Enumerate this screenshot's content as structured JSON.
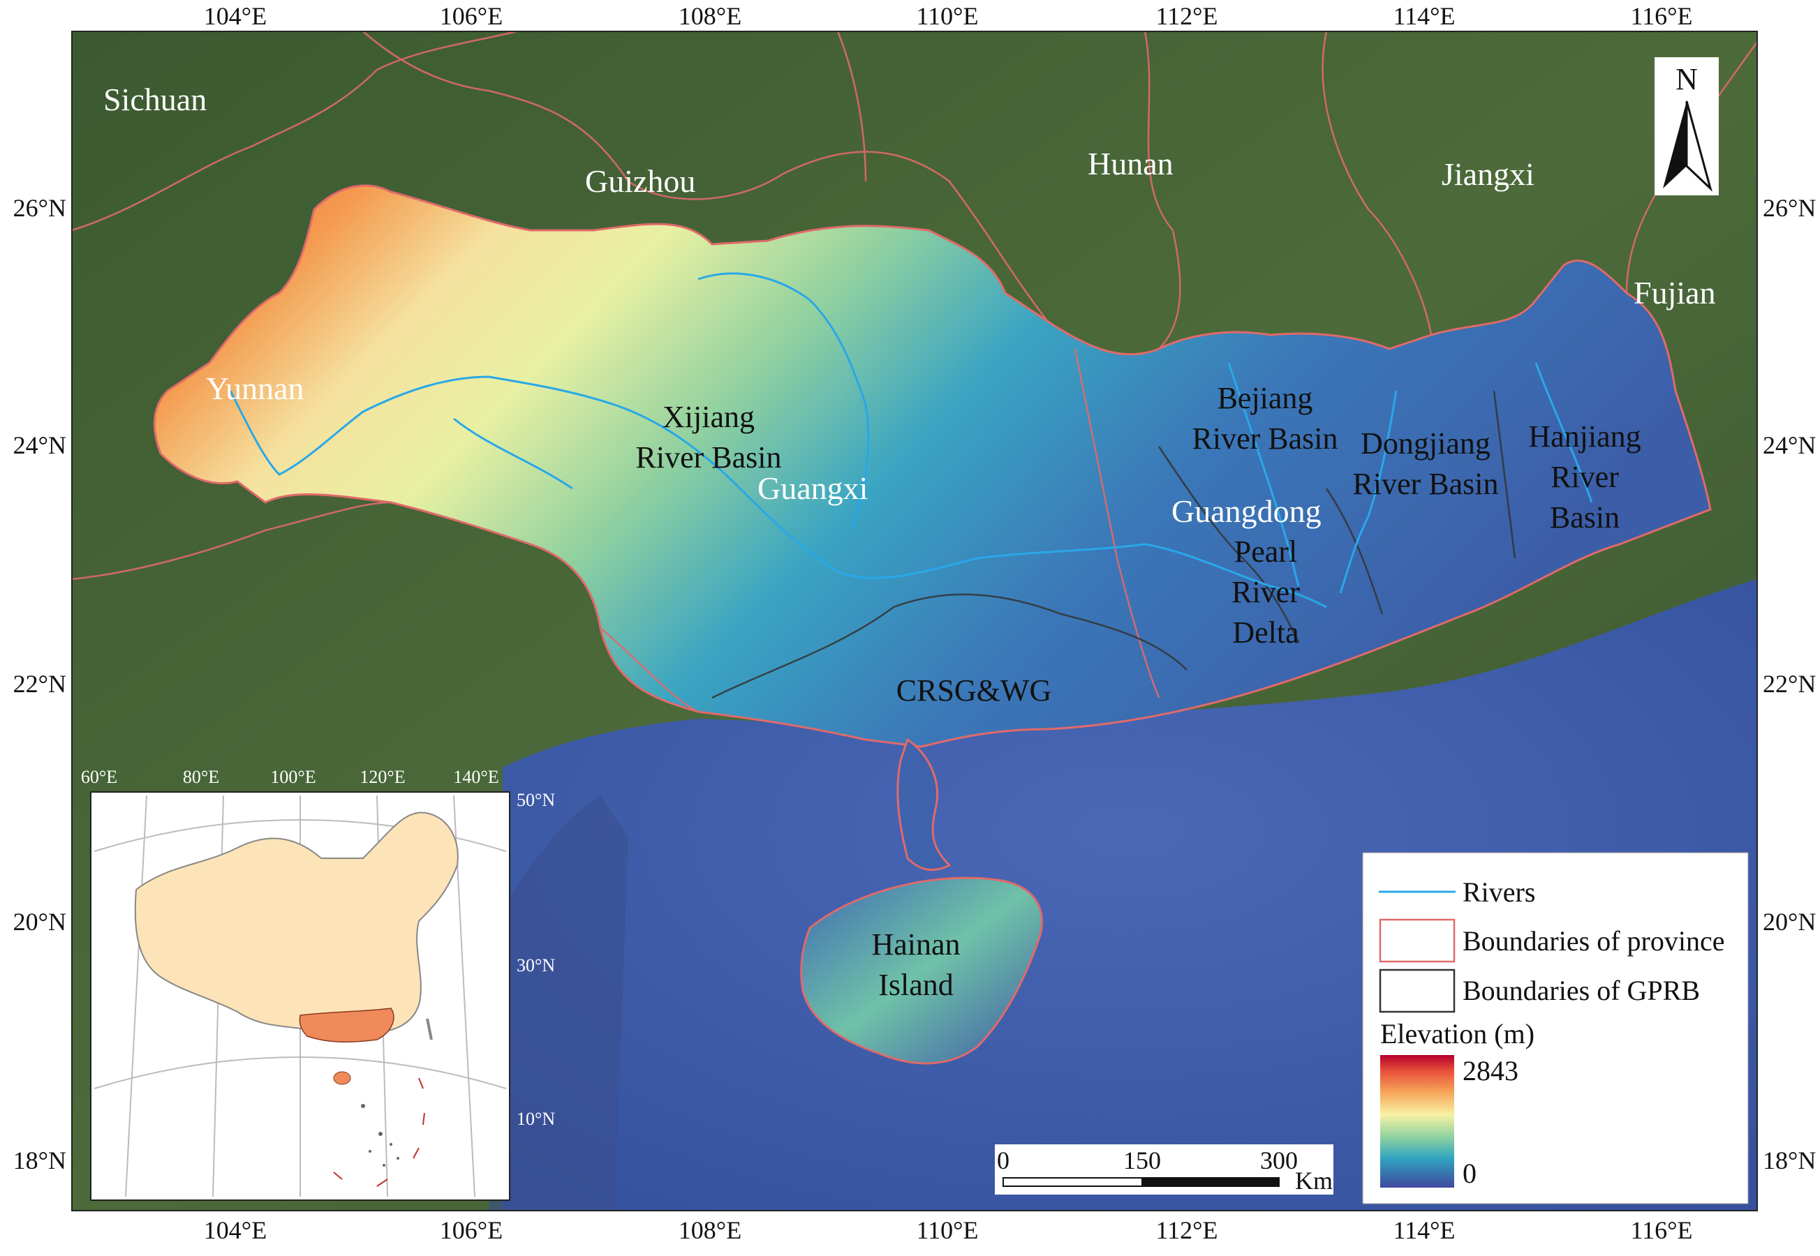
{
  "map": {
    "lon_ticks": [
      "104°E",
      "106°E",
      "108°E",
      "110°E",
      "112°E",
      "114°E",
      "116°E"
    ],
    "lat_ticks": [
      "26°N",
      "24°N",
      "22°N",
      "20°N",
      "18°N"
    ],
    "province_labels": {
      "sichuan": "Sichuan",
      "guizhou": "Guizhou",
      "hunan": "Hunan",
      "jiangxi": "Jiangxi",
      "fujian": "Fujian",
      "yunnan": "Yunnan",
      "guangxi": "Guangxi",
      "guangdong": "Guangdong"
    },
    "region_labels": {
      "xijiang": [
        "Xijiang",
        "River Basin"
      ],
      "beijiang": [
        "Bejiang",
        "River Basin"
      ],
      "dongjiang": [
        "Dongjiang",
        "River Basin"
      ],
      "hanjiang": [
        "Hanjiang",
        "River",
        "Basin"
      ],
      "prd": [
        "Pearl",
        "River",
        "Delta"
      ],
      "crsg": "CRSG&WG",
      "hainan": [
        "Hainan",
        "Island"
      ]
    },
    "north_arrow": "N",
    "scale_bar": {
      "labels": [
        "0",
        "150",
        "300"
      ],
      "unit": "Km"
    },
    "legend": {
      "rivers": "Rivers",
      "province_boundaries": "Boundaries of province",
      "gprb_boundaries": "Boundaries of GPRB",
      "elevation_title": "Elevation (m)",
      "elevation_max": "2843",
      "elevation_min": "0"
    },
    "inset": {
      "lon_ticks": [
        "60°E",
        "80°E",
        "100°E",
        "120°E",
        "140°E"
      ],
      "lat_ticks": [
        "50°N",
        "30°N",
        "10°N"
      ]
    },
    "colors": {
      "river": "#29a8e8",
      "province_boundary": "#e06a6a",
      "gprb_boundary": "#333333",
      "sea": "#3f58a8",
      "land": "#3e5a32",
      "china_fill": "#fde3b8",
      "study_area": "#f08a5a"
    }
  }
}
